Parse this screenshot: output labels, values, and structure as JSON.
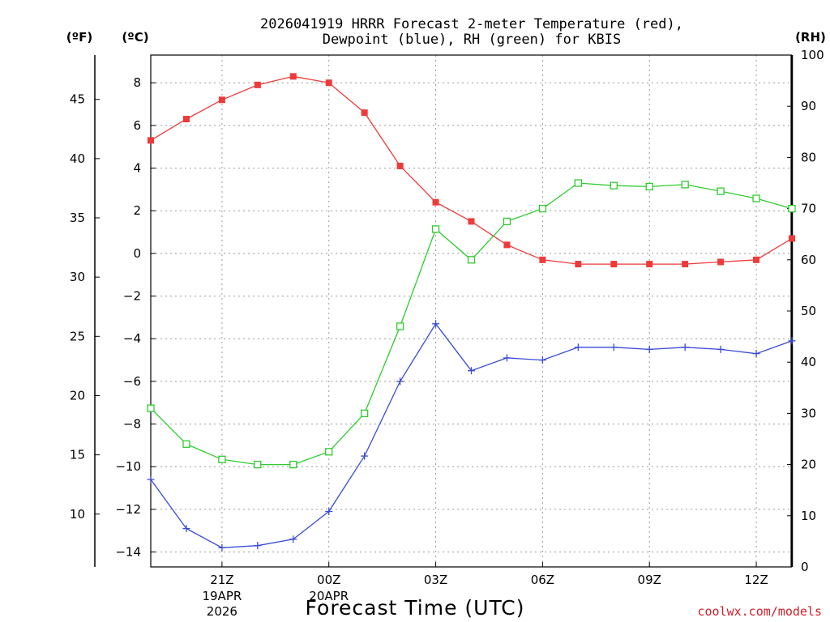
{
  "chart_data": {
    "type": "line",
    "title": [
      "2026041919 HRRR Forecast 2-meter Temperature (red),",
      "Dewpoint (blue), RH (green) for KBIS"
    ],
    "xlabel": "Forecast Time (UTC)",
    "credit": "coolwx.com/models",
    "left_f_unit": "(ºF)",
    "left_c_unit": "(ºC)",
    "right_unit": "(RH)",
    "x": [
      "19Z",
      "20Z",
      "21Z",
      "22Z",
      "23Z",
      "00Z",
      "01Z",
      "02Z",
      "03Z",
      "04Z",
      "05Z",
      "06Z",
      "07Z",
      "08Z",
      "09Z",
      "10Z",
      "11Z",
      "12Z",
      "13Z"
    ],
    "x_ticks": [
      {
        "label": "21Z",
        "sub": [
          "19APR",
          "2026"
        ]
      },
      {
        "label": "00Z",
        "sub": [
          "20APR"
        ]
      },
      {
        "label": "03Z",
        "sub": []
      },
      {
        "label": "06Z",
        "sub": []
      },
      {
        "label": "09Z",
        "sub": []
      },
      {
        "label": "12Z",
        "sub": []
      }
    ],
    "ylim_c": [
      -14.7,
      9.3
    ],
    "y_ticks_c": [
      "8",
      "6",
      "4",
      "2",
      "0",
      "−2",
      "−4",
      "−6",
      "−8",
      "−10",
      "−12",
      "−14"
    ],
    "y_ticks_f": [
      "45",
      "40",
      "35",
      "30",
      "25",
      "20",
      "15",
      "10"
    ],
    "ylim_rh": [
      0,
      100
    ],
    "y_ticks_rh": [
      "100",
      "90",
      "80",
      "70",
      "60",
      "50",
      "40",
      "30",
      "20",
      "10",
      "0"
    ],
    "grid": true,
    "series": [
      {
        "name": "Temperature",
        "color": "#ee3a3a",
        "marker": "filled-square",
        "axis": "c",
        "values": [
          5.3,
          6.3,
          7.2,
          7.9,
          8.3,
          8.0,
          6.6,
          4.1,
          2.4,
          1.5,
          0.4,
          -0.3,
          -0.5,
          -0.5,
          -0.5,
          -0.5,
          -0.4,
          -0.3,
          0.7
        ]
      },
      {
        "name": "Dewpoint",
        "color": "#3a4ad9",
        "marker": "plus",
        "axis": "c",
        "values": [
          -10.6,
          -12.9,
          -13.8,
          -13.7,
          -13.4,
          -12.1,
          -9.5,
          -6.0,
          -3.3,
          -5.5,
          -4.9,
          -5.0,
          -4.4,
          -4.4,
          -4.5,
          -4.4,
          -4.5,
          -4.7,
          -4.1
        ]
      },
      {
        "name": "RH",
        "color": "#2ecc2e",
        "marker": "open-square",
        "axis": "rh",
        "values": [
          31,
          24,
          21,
          20,
          20,
          22.5,
          30,
          47,
          66,
          60,
          67.5,
          70,
          75,
          74.5,
          74.3,
          74.7,
          73.4,
          72,
          70
        ]
      }
    ]
  }
}
